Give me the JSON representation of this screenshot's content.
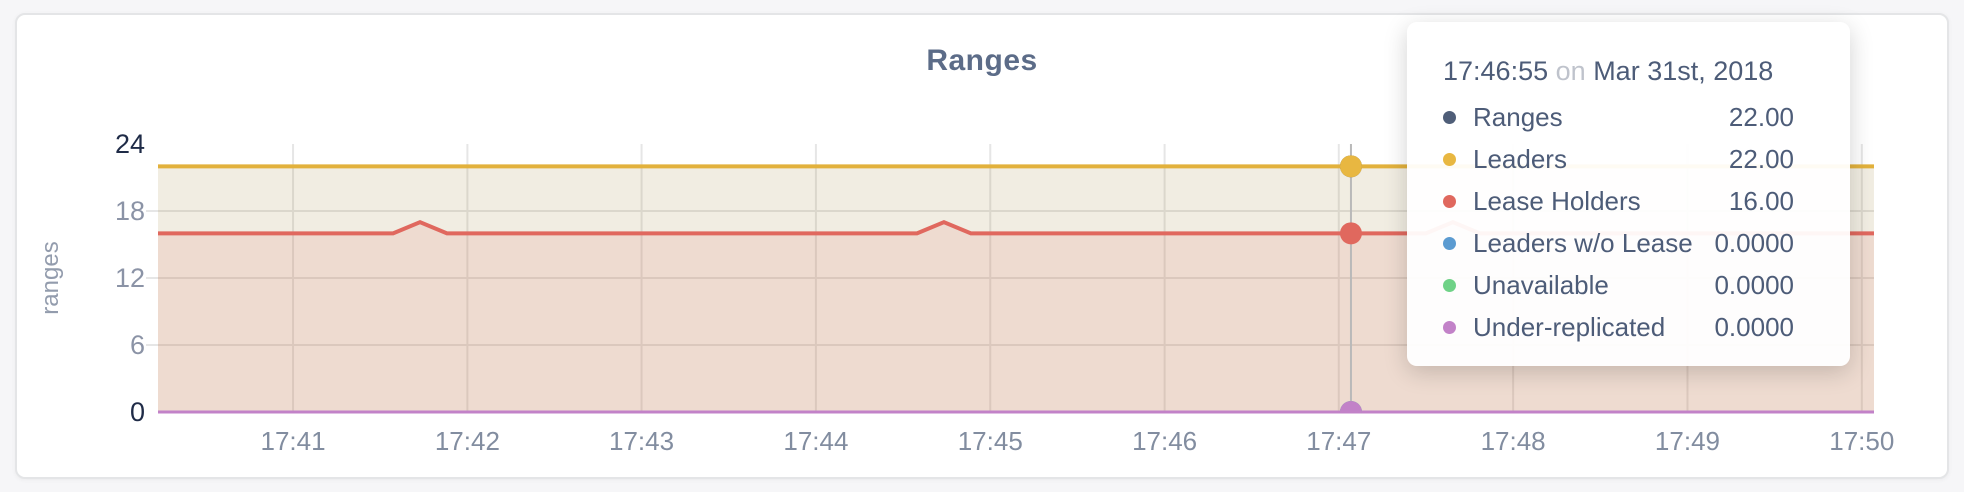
{
  "chart_data": {
    "type": "line",
    "title": "Ranges",
    "ylabel": "ranges",
    "ylim": [
      0,
      24
    ],
    "grid": true,
    "y_ticks": [
      {
        "label": "24",
        "value": 24,
        "emph": true
      },
      {
        "label": "18",
        "value": 18,
        "emph": false
      },
      {
        "label": "12",
        "value": 12,
        "emph": false
      },
      {
        "label": "6",
        "value": 6,
        "emph": false
      },
      {
        "label": "0",
        "value": 0,
        "emph": true
      }
    ],
    "x_ticks": [
      {
        "label": "17:41",
        "f": 0.0787
      },
      {
        "label": "17:42",
        "f": 0.1803
      },
      {
        "label": "17:43",
        "f": 0.2818
      },
      {
        "label": "17:44",
        "f": 0.3834
      },
      {
        "label": "17:45",
        "f": 0.485
      },
      {
        "label": "17:46",
        "f": 0.5866
      },
      {
        "label": "17:47",
        "f": 0.6881
      },
      {
        "label": "17:48",
        "f": 0.7897
      },
      {
        "label": "17:49",
        "f": 0.8913
      },
      {
        "label": "17:50",
        "f": 0.9929
      }
    ],
    "series": [
      {
        "name": "Ranges",
        "color": "#4f5e78",
        "fill_opacity": 0.07,
        "line_width": 3,
        "points": [
          [
            0,
            22
          ],
          [
            1,
            22
          ]
        ]
      },
      {
        "name": "Leaders",
        "color": "#e2b13c",
        "fill_opacity": 0.1,
        "line_width": 4,
        "points": [
          [
            0,
            22
          ],
          [
            1,
            22
          ]
        ]
      },
      {
        "name": "Lease Holders",
        "color": "#e0685e",
        "fill_opacity": 0.13,
        "line_width": 4,
        "points": [
          [
            0,
            16
          ],
          [
            0.137,
            16
          ],
          [
            0.1527,
            17
          ],
          [
            0.1684,
            16
          ],
          [
            0.4423,
            16
          ],
          [
            0.458,
            17
          ],
          [
            0.4737,
            16
          ],
          [
            0.7389,
            16
          ],
          [
            0.7546,
            17
          ],
          [
            0.7703,
            16
          ],
          [
            1,
            16
          ]
        ]
      },
      {
        "name": "Leaders w/o Lease",
        "color": "#5b9bd1",
        "fill_opacity": 0,
        "line_width": 2,
        "points": [
          [
            0,
            0
          ],
          [
            1,
            0
          ]
        ]
      },
      {
        "name": "Unavailable",
        "color": "#6fd287",
        "fill_opacity": 0,
        "line_width": 2,
        "points": [
          [
            0,
            0
          ],
          [
            1,
            0
          ]
        ]
      },
      {
        "name": "Under-replicated",
        "color": "#c282c8",
        "fill_opacity": 0,
        "line_width": 3,
        "points": [
          [
            0,
            0
          ],
          [
            1,
            0
          ]
        ]
      }
    ],
    "hover": {
      "f": 0.6952,
      "time": "17:46:55",
      "conjunction": "on",
      "date": "Mar 31st, 2018",
      "rows": [
        {
          "label": "Ranges",
          "value": "22.00",
          "v": 22,
          "color": "#4f5e78"
        },
        {
          "label": "Leaders",
          "value": "22.00",
          "v": 22,
          "color": "#e8b741"
        },
        {
          "label": "Lease Holders",
          "value": "16.00",
          "v": 16,
          "color": "#e0685e"
        },
        {
          "label": "Leaders w/o Lease",
          "value": "0.0000",
          "v": 0,
          "color": "#5b9bd1"
        },
        {
          "label": "Unavailable",
          "value": "0.0000",
          "v": 0,
          "color": "#6fd287"
        },
        {
          "label": "Under-replicated",
          "value": "0.0000",
          "v": 0,
          "color": "#c282c8"
        }
      ]
    },
    "colors": {
      "grid": "#e6e6e6",
      "hover_line": "#b9b9b9",
      "title": "#5c6c88",
      "tick_emphasis": "#1f2b47",
      "tick_muted": "#8b93a6"
    }
  }
}
